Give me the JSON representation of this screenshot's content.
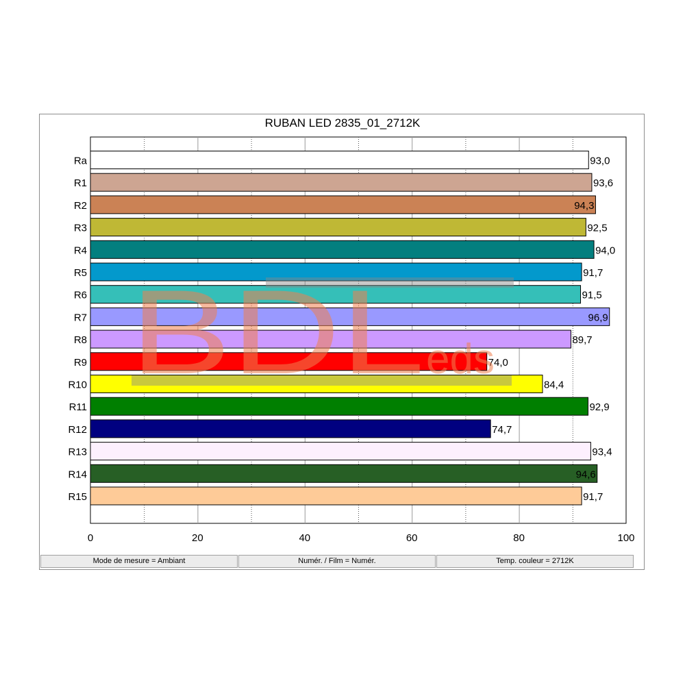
{
  "chart_data": {
    "type": "bar",
    "orientation": "horizontal",
    "title": "RUBAN LED 2835_01_2712K",
    "categories": [
      "Ra",
      "R1",
      "R2",
      "R3",
      "R4",
      "R5",
      "R6",
      "R7",
      "R8",
      "R9",
      "R10",
      "R11",
      "R12",
      "R13",
      "R14",
      "R15"
    ],
    "values": [
      93.0,
      93.6,
      94.3,
      92.5,
      94.0,
      91.7,
      91.5,
      96.9,
      89.7,
      74.0,
      84.4,
      92.9,
      74.7,
      93.4,
      94.6,
      91.7
    ],
    "value_labels": [
      "93,0",
      "93,6",
      "94,3",
      "92,5",
      "94,0",
      "91,7",
      "91,5",
      "96,9",
      "89,7",
      "74,0",
      "84,4",
      "92,9",
      "74,7",
      "93,4",
      "94,6",
      "91,7"
    ],
    "colors": [
      "#ffffff",
      "#cda592",
      "#cb8255",
      "#bfb835",
      "#037f7f",
      "#0399cc",
      "#35bfb8",
      "#9999ff",
      "#cc99ff",
      "#ff0000",
      "#ffff00",
      "#007f00",
      "#000080",
      "#fdf0fe",
      "#275f25",
      "#fecb98"
    ],
    "label_inside": [
      false,
      false,
      true,
      false,
      false,
      false,
      false,
      true,
      false,
      false,
      false,
      false,
      false,
      false,
      true,
      false
    ],
    "xlim": [
      0,
      100
    ],
    "xticks": [
      0,
      20,
      40,
      60,
      80,
      100
    ],
    "xtick_labels": [
      "0",
      "20",
      "40",
      "60",
      "80",
      "100"
    ],
    "grid": "vertical dotted every 10",
    "xlabel": "",
    "ylabel": ""
  },
  "status_bar": {
    "mode": "Mode de mesure = Ambiant",
    "film": "Numér. / Film = Numér.",
    "temp": "Temp. couleur = 2712K"
  },
  "watermark": {
    "main": "BDL",
    "sub": "eds",
    "color": "#f08050"
  }
}
